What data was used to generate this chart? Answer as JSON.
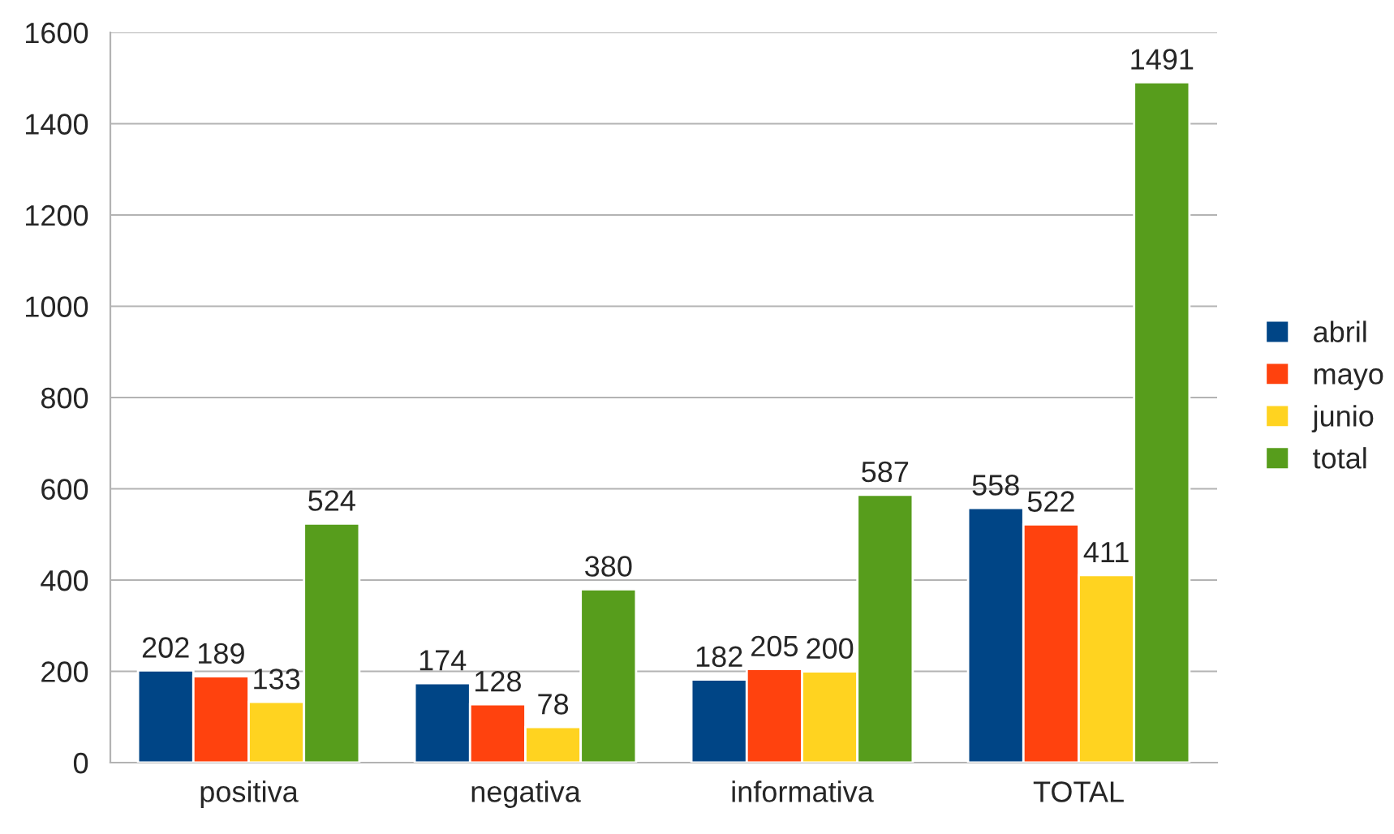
{
  "chart_data": {
    "type": "bar",
    "categories": [
      "positiva",
      "negativa",
      "informativa",
      "TOTAL"
    ],
    "series": [
      {
        "name": "abril",
        "color": "#004586",
        "values": [
          202,
          174,
          182,
          558
        ]
      },
      {
        "name": "mayo",
        "color": "#ff420e",
        "values": [
          189,
          128,
          205,
          522
        ]
      },
      {
        "name": "junio",
        "color": "#ffd320",
        "values": [
          133,
          78,
          200,
          411
        ]
      },
      {
        "name": "total",
        "color": "#579d1c",
        "values": [
          524,
          380,
          587,
          1491
        ]
      }
    ],
    "ylim": [
      0,
      1600
    ],
    "yticks": [
      0,
      200,
      400,
      600,
      800,
      1000,
      1200,
      1400,
      1600
    ],
    "grid": "y",
    "legend": "right",
    "data_labels": true
  }
}
